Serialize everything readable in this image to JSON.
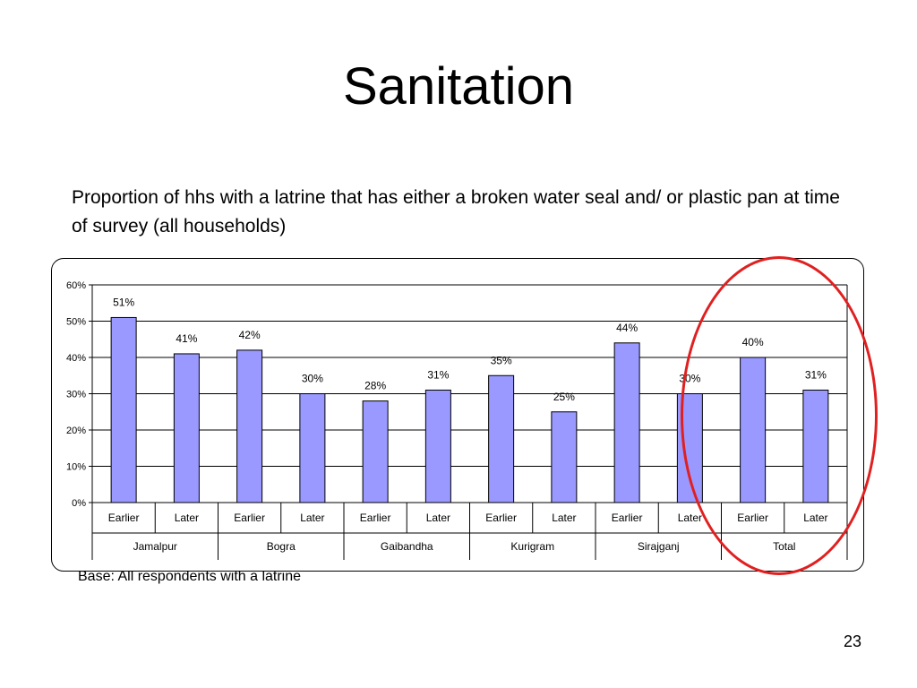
{
  "slide": {
    "title": "Sanitation",
    "subtitle": "Proportion of hhs with a latrine that has either a broken water seal and/ or plastic pan at time of survey (all households)",
    "base_note": "Base: All respondents with a latrine",
    "page_number": "23"
  },
  "colors": {
    "bar_fill": "#9999ff",
    "bar_stroke": "#000000",
    "highlight": "#e02020"
  },
  "chart_data": {
    "type": "bar",
    "categories": [
      "Earlier",
      "Later",
      "Earlier",
      "Later",
      "Earlier",
      "Later",
      "Earlier",
      "Later",
      "Earlier",
      "Later",
      "Earlier",
      "Later"
    ],
    "groups": [
      "Jamalpur",
      "Bogra",
      "Gaibandha",
      "Kurigram",
      "Sirajganj",
      "Total"
    ],
    "values": [
      51,
      41,
      42,
      30,
      28,
      31,
      35,
      25,
      44,
      30,
      40,
      31
    ],
    "data_labels": [
      "51%",
      "41%",
      "42%",
      "30%",
      "28%",
      "31%",
      "35%",
      "25%",
      "44%",
      "30%",
      "40%",
      "31%"
    ],
    "y_ticks": [
      "0%",
      "10%",
      "20%",
      "30%",
      "40%",
      "50%",
      "60%"
    ],
    "ylim": [
      0,
      60
    ],
    "grid": true,
    "legend": "none",
    "highlighted_group": "Total"
  }
}
